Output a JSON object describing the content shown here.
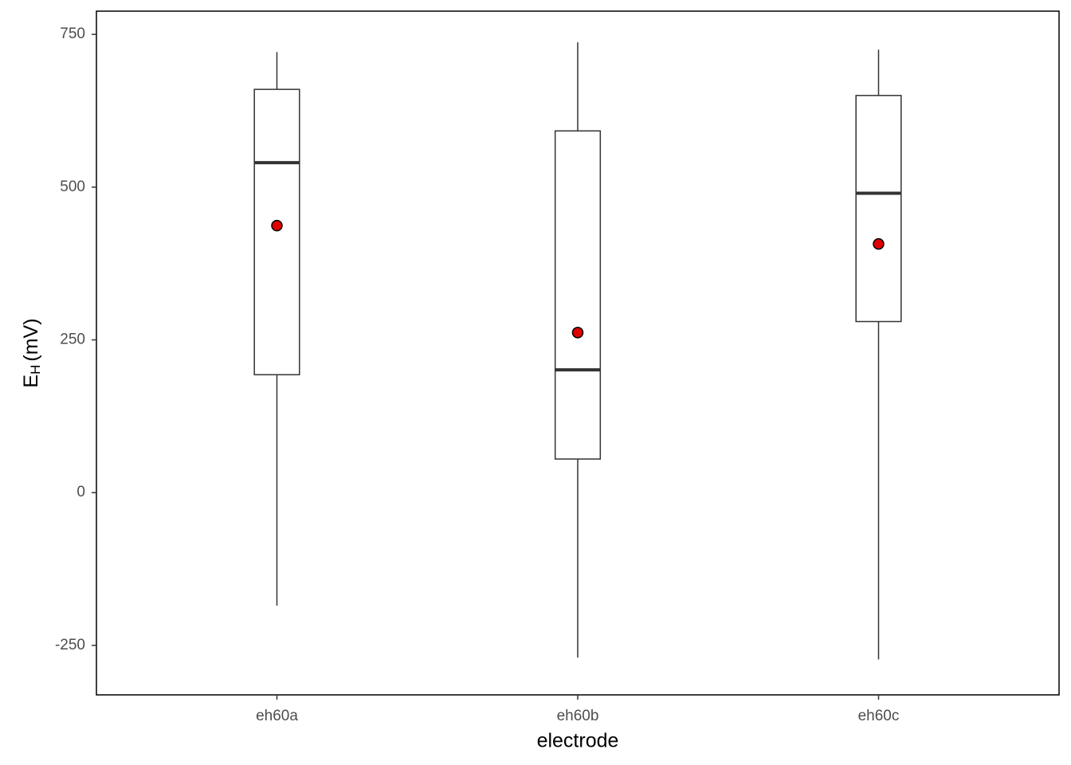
{
  "chart_data": {
    "type": "box",
    "x_label": "electrode",
    "y_label": {
      "main": "E",
      "sub": "H",
      "unit": "(mV)"
    },
    "categories": [
      "eh60a",
      "eh60b",
      "eh60c"
    ],
    "whisker_low": [
      -185,
      -270,
      -273
    ],
    "q1": [
      193,
      55,
      280
    ],
    "median": [
      540,
      201,
      490
    ],
    "q3": [
      660,
      592,
      650
    ],
    "whisker_high": [
      721,
      737,
      725
    ],
    "mean": [
      437,
      262,
      407
    ],
    "box_color": "#333333",
    "mean_color": "#e00000",
    "ylim": [
      -331,
      788
    ],
    "yticks": [
      -250,
      0,
      250,
      500,
      750
    ]
  }
}
